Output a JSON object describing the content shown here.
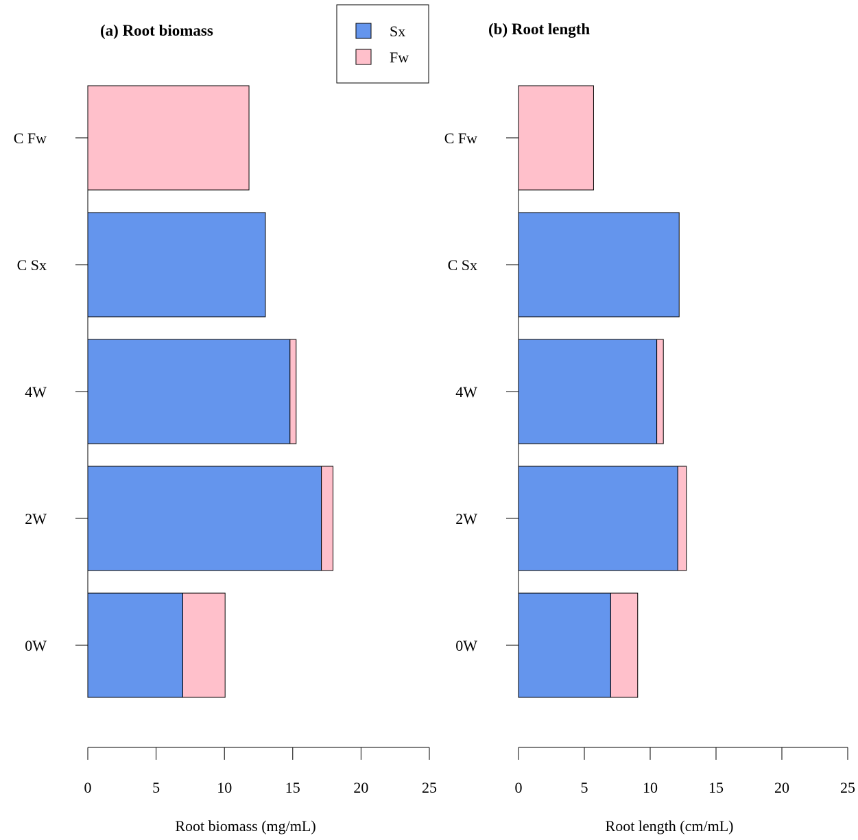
{
  "legend": {
    "entries": [
      {
        "name": "Sx",
        "color": "#6495ED"
      },
      {
        "name": "Fw",
        "color": "#FFC0CB"
      }
    ]
  },
  "chart_data": [
    {
      "type": "bar",
      "orientation": "horizontal",
      "stacked": true,
      "title": "(a) Root biomass",
      "xlabel": "Root biomass (mg/mL)",
      "ylabel": "",
      "xlim": [
        0,
        25
      ],
      "xticks": [
        0,
        5,
        10,
        15,
        20,
        25
      ],
      "categories": [
        "0W",
        "2W",
        "4W",
        "C Sx",
        "C Fw"
      ],
      "series": [
        {
          "name": "Sx",
          "color": "#6495ED",
          "values": [
            6.95,
            17.1,
            14.8,
            13.0,
            0
          ]
        },
        {
          "name": "Fw",
          "color": "#FFC0CB",
          "values": [
            3.1,
            0.85,
            0.45,
            0,
            11.8
          ]
        }
      ],
      "grid": false,
      "legend_position": "top-center"
    },
    {
      "type": "bar",
      "orientation": "horizontal",
      "stacked": true,
      "title": "(b) Root length",
      "xlabel": "Root length (cm/mL)",
      "ylabel": "",
      "xlim": [
        0,
        25
      ],
      "xticks": [
        0,
        5,
        10,
        15,
        20,
        25
      ],
      "categories": [
        "0W",
        "2W",
        "4W",
        "C Sx",
        "C Fw"
      ],
      "series": [
        {
          "name": "Sx",
          "color": "#6495ED",
          "values": [
            7.0,
            12.1,
            10.5,
            12.2,
            0
          ]
        },
        {
          "name": "Fw",
          "color": "#FFC0CB",
          "values": [
            2.05,
            0.65,
            0.5,
            0,
            5.7
          ]
        }
      ],
      "grid": false,
      "legend_position": "top-center"
    }
  ]
}
